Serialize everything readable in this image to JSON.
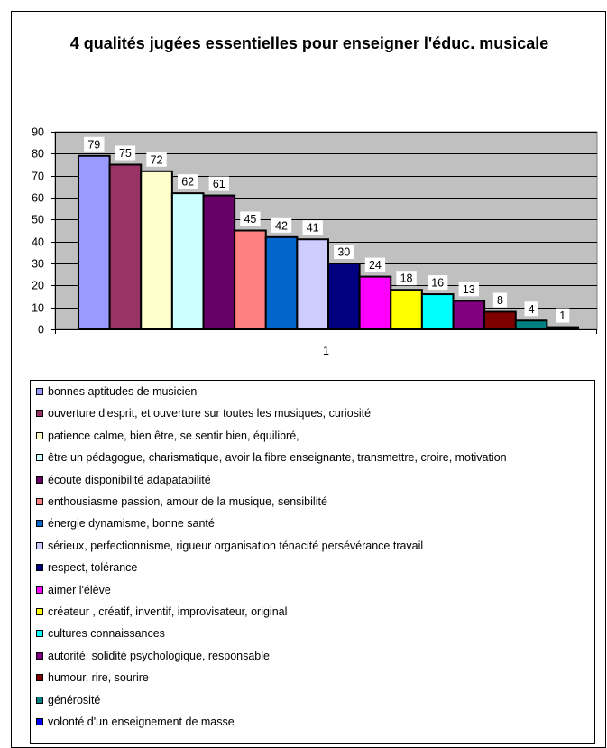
{
  "chart_data": {
    "type": "bar",
    "title": "4 qualités jugées essentielles pour enseigner l'éduc. musicale",
    "category_label": "1",
    "ylim": [
      0,
      90
    ],
    "yticks": [
      0,
      10,
      20,
      30,
      40,
      50,
      60,
      70,
      80,
      90
    ],
    "grid": true,
    "legend_position": "bottom",
    "plot_background": "#c0c0c0",
    "series": [
      {
        "name": "bonnes aptitudes de musicien",
        "values": [
          79
        ],
        "color": "#9999ff"
      },
      {
        "name": "ouverture d'esprit, et ouverture sur toutes les musiques, curiosité",
        "values": [
          75
        ],
        "color": "#993366"
      },
      {
        "name": "patience calme, bien être, se sentir bien, équilibré,",
        "values": [
          72
        ],
        "color": "#ffffcc"
      },
      {
        "name": "être un pédagogue, charismatique, avoir la fibre enseignante, transmettre, croire, motivation",
        "values": [
          62
        ],
        "color": "#ccffff"
      },
      {
        "name": "écoute disponibilité adapatabilité",
        "values": [
          61
        ],
        "color": "#660066"
      },
      {
        "name": "enthousiasme passion, amour de la musique, sensibilité",
        "values": [
          45
        ],
        "color": "#ff8080"
      },
      {
        "name": "énergie dynamisme, bonne santé",
        "values": [
          42
        ],
        "color": "#0066cc"
      },
      {
        "name": "sérieux, perfectionnisme, rigueur organisation ténacité persévérance travail",
        "values": [
          41
        ],
        "color": "#ccccff"
      },
      {
        "name": "respect, tolérance",
        "values": [
          30
        ],
        "color": "#000080"
      },
      {
        "name": "aimer l'élève",
        "values": [
          24
        ],
        "color": "#ff00ff"
      },
      {
        "name": "créateur , créatif, inventif, improvisateur, original",
        "values": [
          18
        ],
        "color": "#ffff00"
      },
      {
        "name": "cultures connaissances",
        "values": [
          16
        ],
        "color": "#00ffff"
      },
      {
        "name": "autorité, solidité psychologique, responsable",
        "values": [
          13
        ],
        "color": "#800080"
      },
      {
        "name": "humour, rire, sourire",
        "values": [
          8
        ],
        "color": "#800000"
      },
      {
        "name": "générosité",
        "values": [
          4
        ],
        "color": "#008080"
      },
      {
        "name": "volonté d'un enseignement de masse",
        "values": [
          1
        ],
        "color": "#0000ff"
      }
    ]
  }
}
